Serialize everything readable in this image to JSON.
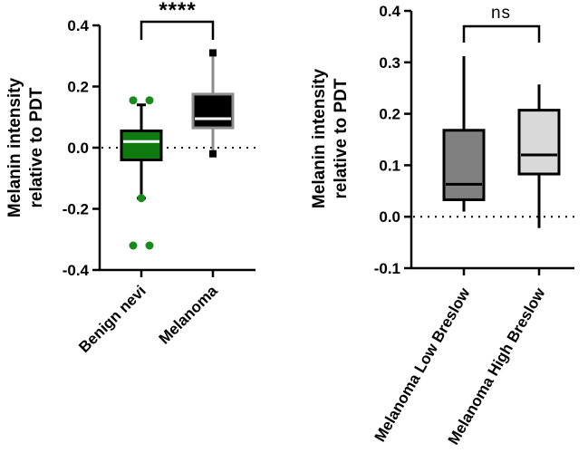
{
  "chart_data": [
    {
      "type": "box",
      "ylabel": [
        "Melanin intensity",
        "relative to PDT"
      ],
      "ylim": [
        -0.4,
        0.4
      ],
      "yticks": [
        -0.4,
        -0.2,
        0.0,
        0.2,
        0.4
      ],
      "ytick_labels": [
        "-0.4",
        "-0.2",
        "0.0",
        "0.2",
        "0.4"
      ],
      "reference_line": 0.0,
      "categories": [
        "Benign nevi",
        "Melanoma"
      ],
      "boxes": [
        {
          "name": "Benign nevi",
          "q1": -0.04,
          "median": 0.02,
          "q3": 0.055,
          "whisker_low": -0.165,
          "whisker_high": 0.14,
          "outliers": [
            0.155,
            0.155,
            -0.165,
            -0.32,
            -0.32
          ],
          "fill": "#0f7a0f",
          "stroke": "#000000",
          "median_color": "#ffffff",
          "outlier_color": "#1a8a1a"
        },
        {
          "name": "Melanoma",
          "q1": 0.065,
          "median": 0.095,
          "q3": 0.175,
          "whisker_low": -0.02,
          "whisker_high": 0.31,
          "outliers": [],
          "fill": "#000000",
          "stroke": "#8c8c8c",
          "median_color": "#ffffff",
          "cap_color": "#000000"
        }
      ],
      "significance": {
        "label": "****",
        "between": [
          "Benign nevi",
          "Melanoma"
        ]
      }
    },
    {
      "type": "box",
      "ylabel": [
        "Melanin intensity",
        "relative to PDT"
      ],
      "ylim": [
        -0.1,
        0.4
      ],
      "yticks": [
        -0.1,
        0.0,
        0.1,
        0.2,
        0.3,
        0.4
      ],
      "ytick_labels": [
        "-0.1",
        "0.0",
        "0.1",
        "0.2",
        "0.3",
        "0.4"
      ],
      "reference_line": 0.0,
      "categories": [
        "Melanoma Low Breslow",
        "Melanoma High Breslow"
      ],
      "boxes": [
        {
          "name": "Melanoma Low Breslow",
          "q1": 0.033,
          "median": 0.063,
          "q3": 0.168,
          "whisker_low": 0.01,
          "whisker_high": 0.312,
          "outliers": [],
          "fill": "#808080",
          "stroke": "#000000",
          "median_color": "#000000"
        },
        {
          "name": "Melanoma High Breslow",
          "q1": 0.083,
          "median": 0.12,
          "q3": 0.207,
          "whisker_low": -0.022,
          "whisker_high": 0.257,
          "outliers": [],
          "fill": "#d9d9d9",
          "stroke": "#000000",
          "median_color": "#000000"
        }
      ],
      "significance": {
        "label": "ns",
        "between": [
          "Melanoma Low Breslow",
          "Melanoma High Breslow"
        ]
      }
    }
  ]
}
